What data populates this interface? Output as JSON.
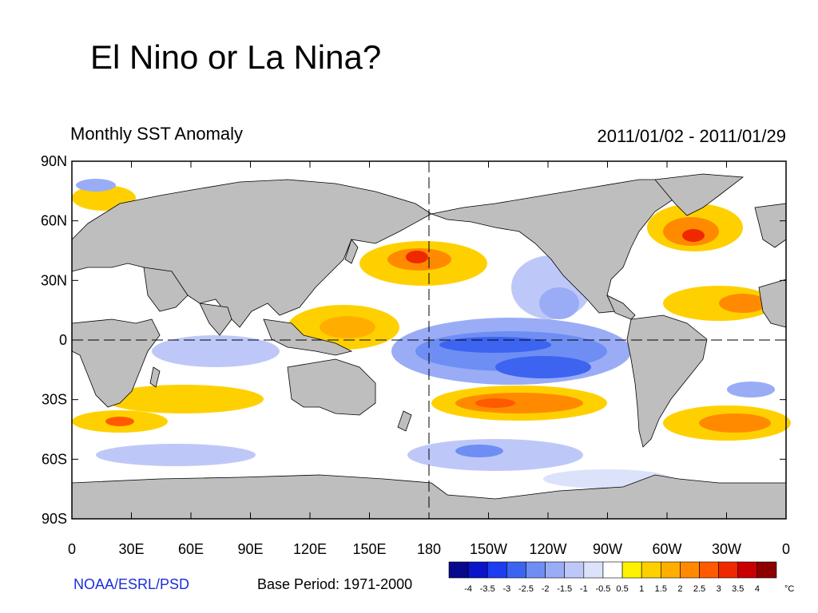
{
  "slide": {
    "title": "El Nino or La Nina?"
  },
  "figure": {
    "title": "Monthly SST Anomaly",
    "date_range": "2011/01/02 - 2011/01/29",
    "credit": "NOAA/ESRL/PSD",
    "base_period": "Base Period: 1971-2000"
  },
  "map": {
    "lat_labels": [
      "90N",
      "60N",
      "30N",
      "0",
      "30S",
      "60S",
      "90S"
    ],
    "lon_labels": [
      "0",
      "30E",
      "60E",
      "90E",
      "120E",
      "150E",
      "180",
      "150W",
      "120W",
      "90W",
      "60W",
      "30W",
      "0"
    ],
    "central_longitude": 180,
    "land_color": "#bebebe",
    "ocean_neutral_color": "#ffffff"
  },
  "colorbar": {
    "unit": "°C",
    "tick_labels": [
      "-4",
      "-3.5",
      "-3",
      "-2.5",
      "-2",
      "-1.5",
      "-1",
      "-0.5",
      "0.5",
      "1",
      "1.5",
      "2",
      "2.5",
      "3",
      "3.5",
      "4"
    ],
    "colors": [
      "#08088c",
      "#0a14c8",
      "#1e3cf0",
      "#3c64f0",
      "#6e8ef4",
      "#9aacf6",
      "#bec8f8",
      "#dce2fa",
      "#ffffff",
      "#fff200",
      "#ffd000",
      "#ffae00",
      "#ff8a00",
      "#ff5a00",
      "#f02800",
      "#c80000",
      "#8c0000"
    ]
  }
}
